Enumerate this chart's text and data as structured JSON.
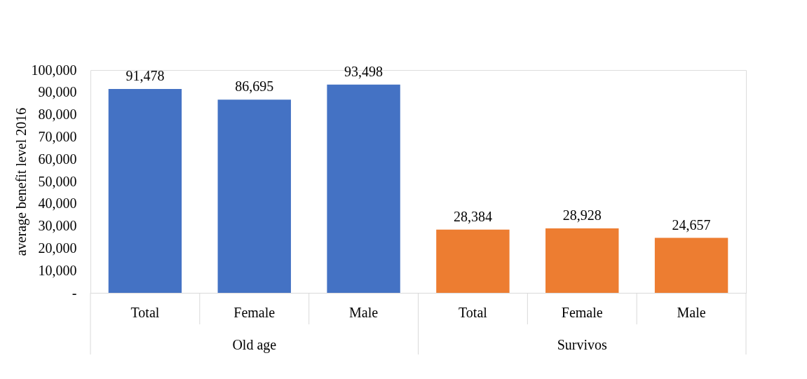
{
  "chart_data": {
    "type": "bar",
    "ylabel": "average benefit level 2016",
    "categories": [
      "Total",
      "Female",
      "Male",
      "Total",
      "Female",
      "Male"
    ],
    "series": [
      {
        "color": "#4472c4",
        "values": [
          91478,
          86695,
          93498,
          null,
          null,
          null
        ],
        "value_labels": [
          "91,478",
          "86,695",
          "93,498",
          null,
          null,
          null
        ]
      },
      {
        "color": "#ed7d31",
        "values": [
          null,
          null,
          null,
          28384,
          28928,
          24657
        ],
        "value_labels": [
          null,
          null,
          null,
          "28,384",
          "28,928",
          "24,657"
        ]
      }
    ],
    "ylim": [
      0,
      100000
    ],
    "yticks": [
      {
        "value": 0,
        "label": "-"
      },
      {
        "value": 10000,
        "label": "10,000"
      },
      {
        "value": 20000,
        "label": "20,000"
      },
      {
        "value": 30000,
        "label": "30,000"
      },
      {
        "value": 40000,
        "label": "40,000"
      },
      {
        "value": 50000,
        "label": "50,000"
      },
      {
        "value": 60000,
        "label": "60,000"
      },
      {
        "value": 70000,
        "label": "70,000"
      },
      {
        "value": 80000,
        "label": "80,000"
      },
      {
        "value": 90000,
        "label": "90,000"
      },
      {
        "value": 100000,
        "label": "100,000"
      }
    ],
    "annotations": [
      "Old age",
      "Survivos"
    ],
    "grid": false,
    "legend": false
  }
}
